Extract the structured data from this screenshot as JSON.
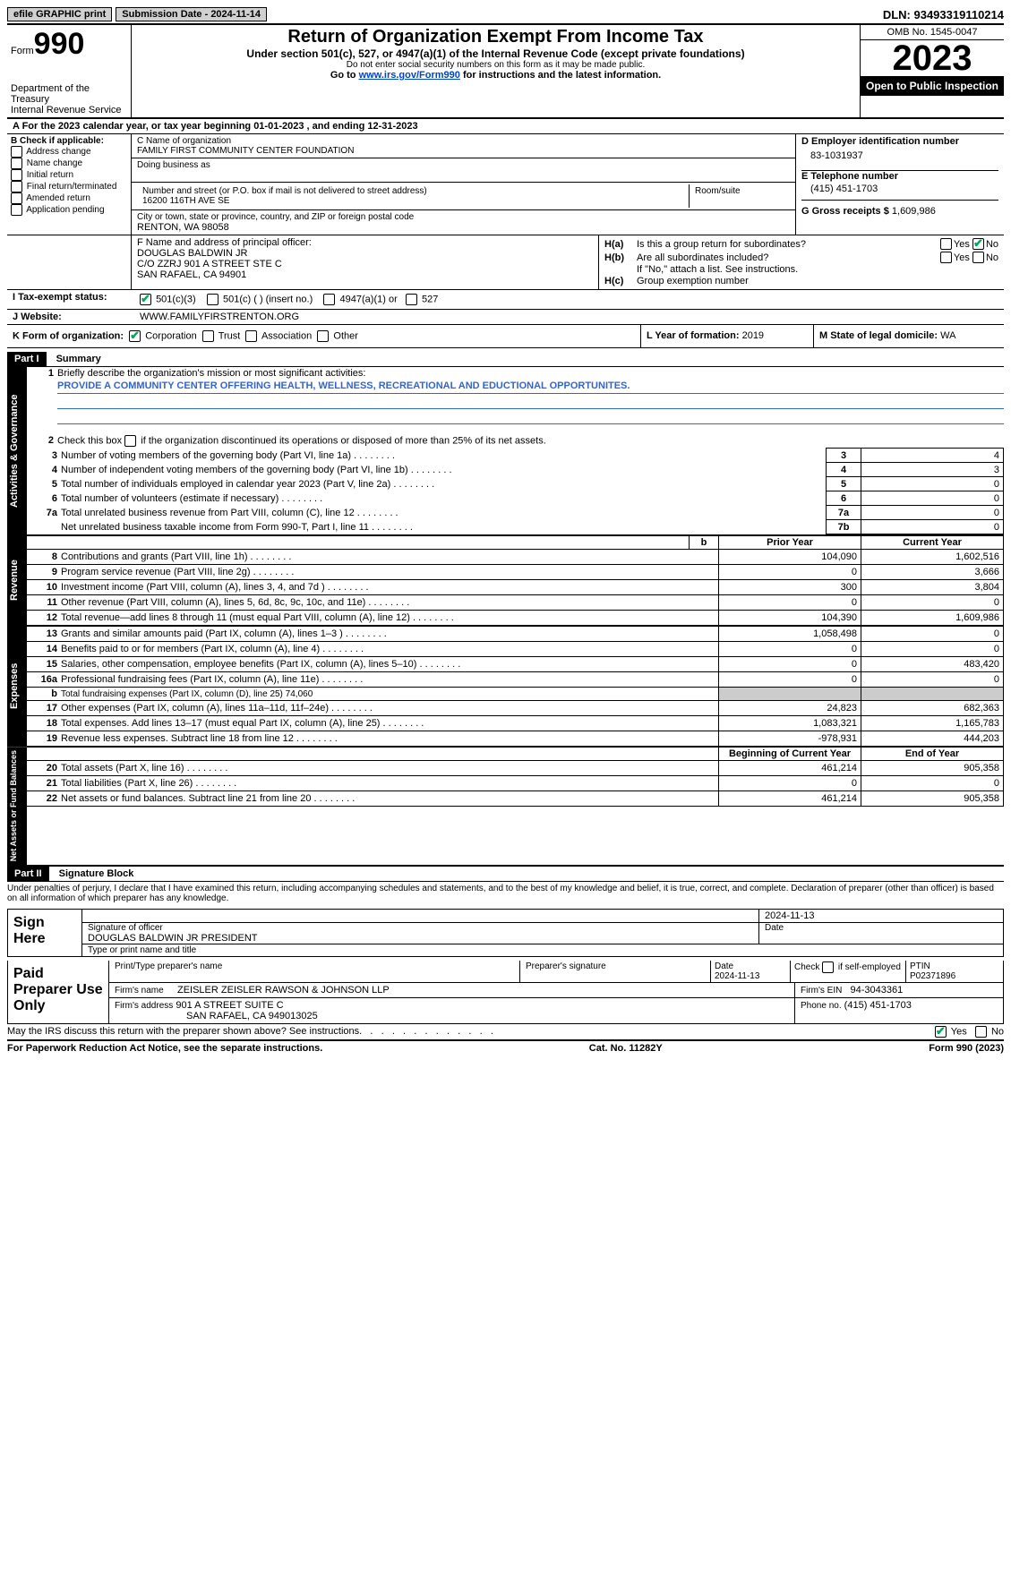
{
  "top": {
    "efile": "efile GRAPHIC print",
    "submission": "Submission Date - 2024-11-14",
    "dln": "DLN: 93493319110214"
  },
  "header": {
    "form_label": "Form",
    "form_num": "990",
    "title": "Return of Organization Exempt From Income Tax",
    "subtitle": "Under section 501(c), 527, or 4947(a)(1) of the Internal Revenue Code (except private foundations)",
    "note1": "Do not enter social security numbers on this form as it may be made public.",
    "note2_pre": "Go to ",
    "note2_link": "www.irs.gov/Form990",
    "note2_post": " for instructions and the latest information.",
    "dept": "Department of the Treasury\nInternal Revenue Service",
    "omb": "OMB No. 1545-0047",
    "year": "2023",
    "open": "Open to Public Inspection"
  },
  "rowA": "A  For the 2023 calendar year, or tax year beginning 01-01-2023     , and ending 12-31-2023",
  "B": {
    "head": "B Check if applicable:",
    "items": [
      "Address change",
      "Name change",
      "Initial return",
      "Final return/terminated",
      "Amended return",
      "Application pending"
    ]
  },
  "C": {
    "name_lbl": "C Name of organization",
    "name": "FAMILY FIRST COMMUNITY CENTER FOUNDATION",
    "dba_lbl": "Doing business as",
    "addr_lbl": "Number and street (or P.O. box if mail is not delivered to street address)",
    "addr": "16200 116TH AVE SE",
    "room_lbl": "Room/suite",
    "city_lbl": "City or town, state or province, country, and ZIP or foreign postal code",
    "city": "RENTON, WA   98058"
  },
  "D": {
    "lbl": "D Employer identification number",
    "val": "83-1031937"
  },
  "E": {
    "lbl": "E Telephone number",
    "val": "(415) 451-1703"
  },
  "G": {
    "lbl": "G Gross receipts $",
    "val": "1,609,986"
  },
  "F": {
    "lbl": "F  Name and address of principal officer:",
    "l1": "DOUGLAS BALDWIN JR",
    "l2": "C/O ZZRJ 901 A STREET STE C",
    "l3": "SAN RAFAEL, CA  94901"
  },
  "H": {
    "a": "Is this a group return for subordinates?",
    "b": "Are all subordinates included?",
    "b_note": "If \"No,\" attach a list. See instructions.",
    "c": "Group exemption number"
  },
  "I": {
    "lbl": "I    Tax-exempt status:",
    "opts": [
      "501(c)(3)",
      "501(c) (  ) (insert no.)",
      "4947(a)(1) or",
      "527"
    ]
  },
  "J": {
    "lbl": "J    Website:",
    "val": "WWW.FAMILYFIRSTRENTON.ORG"
  },
  "K": {
    "lbl": "K Form of organization:",
    "opts": [
      "Corporation",
      "Trust",
      "Association",
      "Other"
    ]
  },
  "L": {
    "lbl": "L Year of formation:",
    "val": "2019"
  },
  "M": {
    "lbl": "M State of legal domicile:",
    "val": "WA"
  },
  "part1": {
    "hdr": "Part I",
    "title": "Summary",
    "q1": "Briefly describe the organization's mission or most significant activities:",
    "mission": "PROVIDE A COMMUNITY CENTER OFFERING HEALTH, WELLNESS, RECREATIONAL AND EDUCTIONAL OPPORTUNITES.",
    "q2": "Check this box        if the organization discontinued its operations or disposed of more than 25% of its net assets.",
    "lines_gov": [
      {
        "n": "3",
        "t": "Number of voting members of the governing body (Part VI, line 1a)",
        "box": "3",
        "v": "4"
      },
      {
        "n": "4",
        "t": "Number of independent voting members of the governing body (Part VI, line 1b)",
        "box": "4",
        "v": "3"
      },
      {
        "n": "5",
        "t": "Total number of individuals employed in calendar year 2023 (Part V, line 2a)",
        "box": "5",
        "v": "0"
      },
      {
        "n": "6",
        "t": "Total number of volunteers (estimate if necessary)",
        "box": "6",
        "v": "0"
      },
      {
        "n": "7a",
        "t": "Total unrelated business revenue from Part VIII, column (C), line 12",
        "box": "7a",
        "v": "0"
      },
      {
        "n": "",
        "t": "Net unrelated business taxable income from Form 990-T, Part I, line 11",
        "box": "7b",
        "v": "0"
      }
    ],
    "col_prior": "Prior Year",
    "col_current": "Current Year",
    "revenue": [
      {
        "n": "8",
        "t": "Contributions and grants (Part VIII, line 1h)",
        "p": "104,090",
        "c": "1,602,516"
      },
      {
        "n": "9",
        "t": "Program service revenue (Part VIII, line 2g)",
        "p": "0",
        "c": "3,666"
      },
      {
        "n": "10",
        "t": "Investment income (Part VIII, column (A), lines 3, 4, and 7d )",
        "p": "300",
        "c": "3,804"
      },
      {
        "n": "11",
        "t": "Other revenue (Part VIII, column (A), lines 5, 6d, 8c, 9c, 10c, and 11e)",
        "p": "0",
        "c": "0"
      },
      {
        "n": "12",
        "t": "Total revenue—add lines 8 through 11 (must equal Part VIII, column (A), line 12)",
        "p": "104,390",
        "c": "1,609,986"
      }
    ],
    "expenses": [
      {
        "n": "13",
        "t": "Grants and similar amounts paid (Part IX, column (A), lines 1–3 )",
        "p": "1,058,498",
        "c": "0"
      },
      {
        "n": "14",
        "t": "Benefits paid to or for members (Part IX, column (A), line 4)",
        "p": "0",
        "c": "0"
      },
      {
        "n": "15",
        "t": "Salaries, other compensation, employee benefits (Part IX, column (A), lines 5–10)",
        "p": "0",
        "c": "483,420"
      },
      {
        "n": "16a",
        "t": "Professional fundraising fees (Part IX, column (A), line 11e)",
        "p": "0",
        "c": "0"
      }
    ],
    "line16b": "Total fundraising expenses (Part IX, column (D), line 25) 74,060",
    "expenses2": [
      {
        "n": "17",
        "t": "Other expenses (Part IX, column (A), lines 11a–11d, 11f–24e)",
        "p": "24,823",
        "c": "682,363"
      },
      {
        "n": "18",
        "t": "Total expenses. Add lines 13–17 (must equal Part IX, column (A), line 25)",
        "p": "1,083,321",
        "c": "1,165,783"
      },
      {
        "n": "19",
        "t": "Revenue less expenses. Subtract line 18 from line 12",
        "p": "-978,931",
        "c": "444,203"
      }
    ],
    "col_begin": "Beginning of Current Year",
    "col_end": "End of Year",
    "netassets": [
      {
        "n": "20",
        "t": "Total assets (Part X, line 16)",
        "p": "461,214",
        "c": "905,358"
      },
      {
        "n": "21",
        "t": "Total liabilities (Part X, line 26)",
        "p": "0",
        "c": "0"
      },
      {
        "n": "22",
        "t": "Net assets or fund balances. Subtract line 21 from line 20",
        "p": "461,214",
        "c": "905,358"
      }
    ]
  },
  "part2": {
    "hdr": "Part II",
    "title": "Signature Block",
    "decl": "Under penalties of perjury, I declare that I have examined this return, including accompanying schedules and statements, and to the best of my knowledge and belief, it is true, correct, and complete. Declaration of preparer (other than officer) is based on all information of which preparer has any knowledge."
  },
  "sign": {
    "here": "Sign Here",
    "date": "2024-11-13",
    "sig_lbl": "Signature of officer",
    "officer": "DOUGLAS BALDWIN JR  PRESIDENT",
    "type_lbl": "Type or print name and title",
    "date_lbl": "Date"
  },
  "prep": {
    "lbl": "Paid Preparer Use Only",
    "name_lbl": "Print/Type preparer's name",
    "sig_lbl": "Preparer's signature",
    "date_lbl": "Date",
    "date": "2024-11-13",
    "self_lbl": "Check         if self-employed",
    "ptin_lbl": "PTIN",
    "ptin": "P02371896",
    "firm_lbl": "Firm's name",
    "firm": "ZEISLER ZEISLER RAWSON & JOHNSON LLP",
    "ein_lbl": "Firm's EIN",
    "ein": "94-3043361",
    "addr_lbl": "Firm's address",
    "addr1": "901 A STREET SUITE C",
    "addr2": "SAN RAFAEL, CA  949013025",
    "phone_lbl": "Phone no.",
    "phone": "(415) 451-1703"
  },
  "discuss": "May the IRS discuss this return with the preparer shown above? See instructions.",
  "footer": {
    "pra": "For Paperwork Reduction Act Notice, see the separate instructions.",
    "cat": "Cat. No. 11282Y",
    "form": "Form 990 (2023)"
  },
  "labels": {
    "yes": "Yes",
    "no": "No",
    "b": "b",
    "ha": "H(a)",
    "hb": "H(b)",
    "hc": "H(c)"
  },
  "tabs": {
    "gov": "Activities & Governance",
    "rev": "Revenue",
    "exp": "Expenses",
    "net": "Net Assets or Fund Balances"
  }
}
